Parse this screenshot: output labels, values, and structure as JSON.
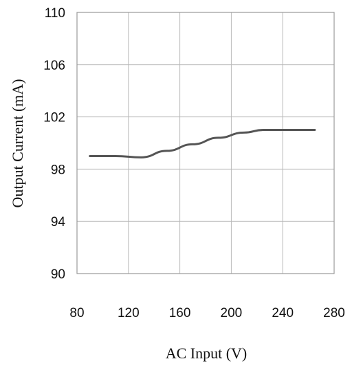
{
  "chart_data": {
    "type": "line",
    "xlabel": "AC Input (V)",
    "ylabel": "Output Current (mA)",
    "xlim": [
      80,
      280
    ],
    "ylim": [
      90,
      110
    ],
    "x_ticks": [
      80,
      120,
      160,
      200,
      240,
      280
    ],
    "y_ticks": [
      90,
      94,
      98,
      102,
      106,
      110
    ],
    "grid": true,
    "legend": "none",
    "series": [
      {
        "x": [
          90,
          110,
          130,
          150,
          170,
          190,
          210,
          225,
          240,
          265
        ],
        "y": [
          99.0,
          99.0,
          98.9,
          99.4,
          99.9,
          100.4,
          100.8,
          101.0,
          101.0,
          101.0
        ],
        "color": "#555555"
      }
    ]
  }
}
